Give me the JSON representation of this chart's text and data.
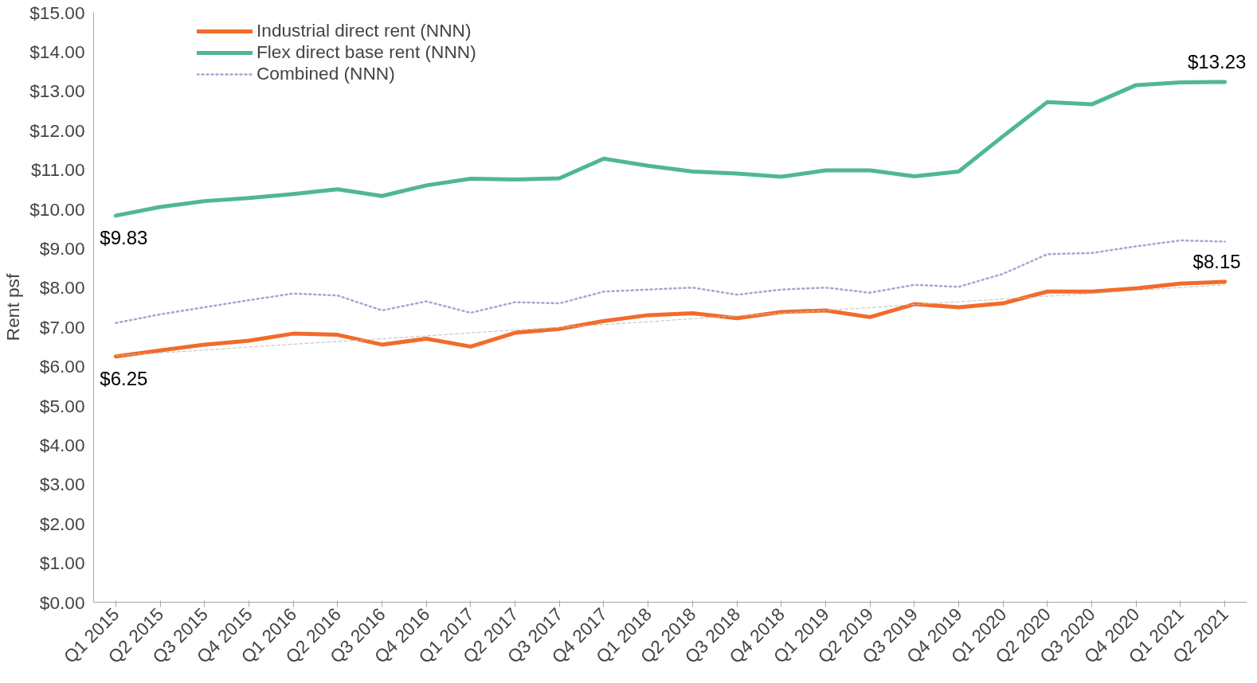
{
  "chart_data": {
    "type": "line",
    "ylabel": "Rent psf",
    "categories": [
      "Q1 2015",
      "Q2 2015",
      "Q3 2015",
      "Q4 2015",
      "Q1 2016",
      "Q2 2016",
      "Q3 2016",
      "Q4 2016",
      "Q1 2017",
      "Q2 2017",
      "Q3 2017",
      "Q4 2017",
      "Q1 2018",
      "Q2 2018",
      "Q3 2018",
      "Q4 2018",
      "Q1 2019",
      "Q2 2019",
      "Q3 2019",
      "Q4 2019",
      "Q1 2020",
      "Q2 2020",
      "Q3 2020",
      "Q4 2020",
      "Q1 2021",
      "Q2 2021"
    ],
    "series": [
      {
        "name": "Industrial direct rent (NNN)",
        "color": "#f26b2a",
        "line_style": "solid",
        "values": [
          6.25,
          6.4,
          6.55,
          6.65,
          6.83,
          6.8,
          6.55,
          6.7,
          6.5,
          6.85,
          6.95,
          7.15,
          7.3,
          7.35,
          7.22,
          7.38,
          7.42,
          7.25,
          7.58,
          7.5,
          7.6,
          7.9,
          7.9,
          7.98,
          8.1,
          8.15
        ],
        "value_labels": [
          "$6.25",
          null,
          null,
          null,
          null,
          null,
          null,
          null,
          null,
          null,
          null,
          null,
          null,
          null,
          null,
          null,
          null,
          null,
          null,
          null,
          null,
          null,
          null,
          null,
          null,
          "$8.15"
        ]
      },
      {
        "name": "Flex direct base rent (NNN)",
        "color": "#4fb892",
        "line_style": "solid",
        "values": [
          9.83,
          10.05,
          10.2,
          10.28,
          10.38,
          10.5,
          10.33,
          10.6,
          10.77,
          10.75,
          10.78,
          11.28,
          11.1,
          10.95,
          10.9,
          10.82,
          10.98,
          10.98,
          10.83,
          10.95,
          11.85,
          12.72,
          12.66,
          13.15,
          13.22,
          13.23
        ],
        "value_labels": [
          "$9.83",
          null,
          null,
          null,
          null,
          null,
          null,
          null,
          null,
          null,
          null,
          null,
          null,
          null,
          null,
          null,
          null,
          null,
          null,
          null,
          null,
          null,
          null,
          null,
          null,
          "$13.23"
        ]
      },
      {
        "name": "Combined (NNN)",
        "color": "#aaa3d2",
        "line_style": "dotted",
        "values": [
          7.1,
          7.32,
          7.5,
          7.68,
          7.85,
          7.8,
          7.42,
          7.65,
          7.36,
          7.63,
          7.6,
          7.9,
          7.95,
          8.0,
          7.82,
          7.95,
          8.0,
          7.87,
          8.07,
          8.02,
          8.35,
          8.85,
          8.88,
          9.05,
          9.2,
          9.17
        ]
      },
      {
        "color": "#bfbfbf",
        "line_style": "dashed",
        "values": [
          6.27,
          6.34,
          6.41,
          6.49,
          6.56,
          6.63,
          6.7,
          6.77,
          6.85,
          6.92,
          6.99,
          7.06,
          7.13,
          7.21,
          7.28,
          7.35,
          7.42,
          7.49,
          7.57,
          7.64,
          7.71,
          7.78,
          7.85,
          7.93,
          8.0,
          8.07
        ]
      }
    ],
    "ylim": [
      0,
      15
    ],
    "yticks": [
      {
        "value": 0,
        "label": "$0.00"
      },
      {
        "value": 1,
        "label": "$1.00"
      },
      {
        "value": 2,
        "label": "$2.00"
      },
      {
        "value": 3,
        "label": "$3.00"
      },
      {
        "value": 4,
        "label": "$4.00"
      },
      {
        "value": 5,
        "label": "$5.00"
      },
      {
        "value": 6,
        "label": "$6.00"
      },
      {
        "value": 7,
        "label": "$7.00"
      },
      {
        "value": 8,
        "label": "$8.00"
      },
      {
        "value": 9,
        "label": "$9.00"
      },
      {
        "value": 10,
        "label": "$10.00"
      },
      {
        "value": 11,
        "label": "$11.00"
      },
      {
        "value": 12,
        "label": "$12.00"
      },
      {
        "value": 13,
        "label": "$13.00"
      },
      {
        "value": 14,
        "label": "$14.00"
      },
      {
        "value": 15,
        "label": "$15.00"
      }
    ],
    "grid": false,
    "legend": "top left"
  }
}
